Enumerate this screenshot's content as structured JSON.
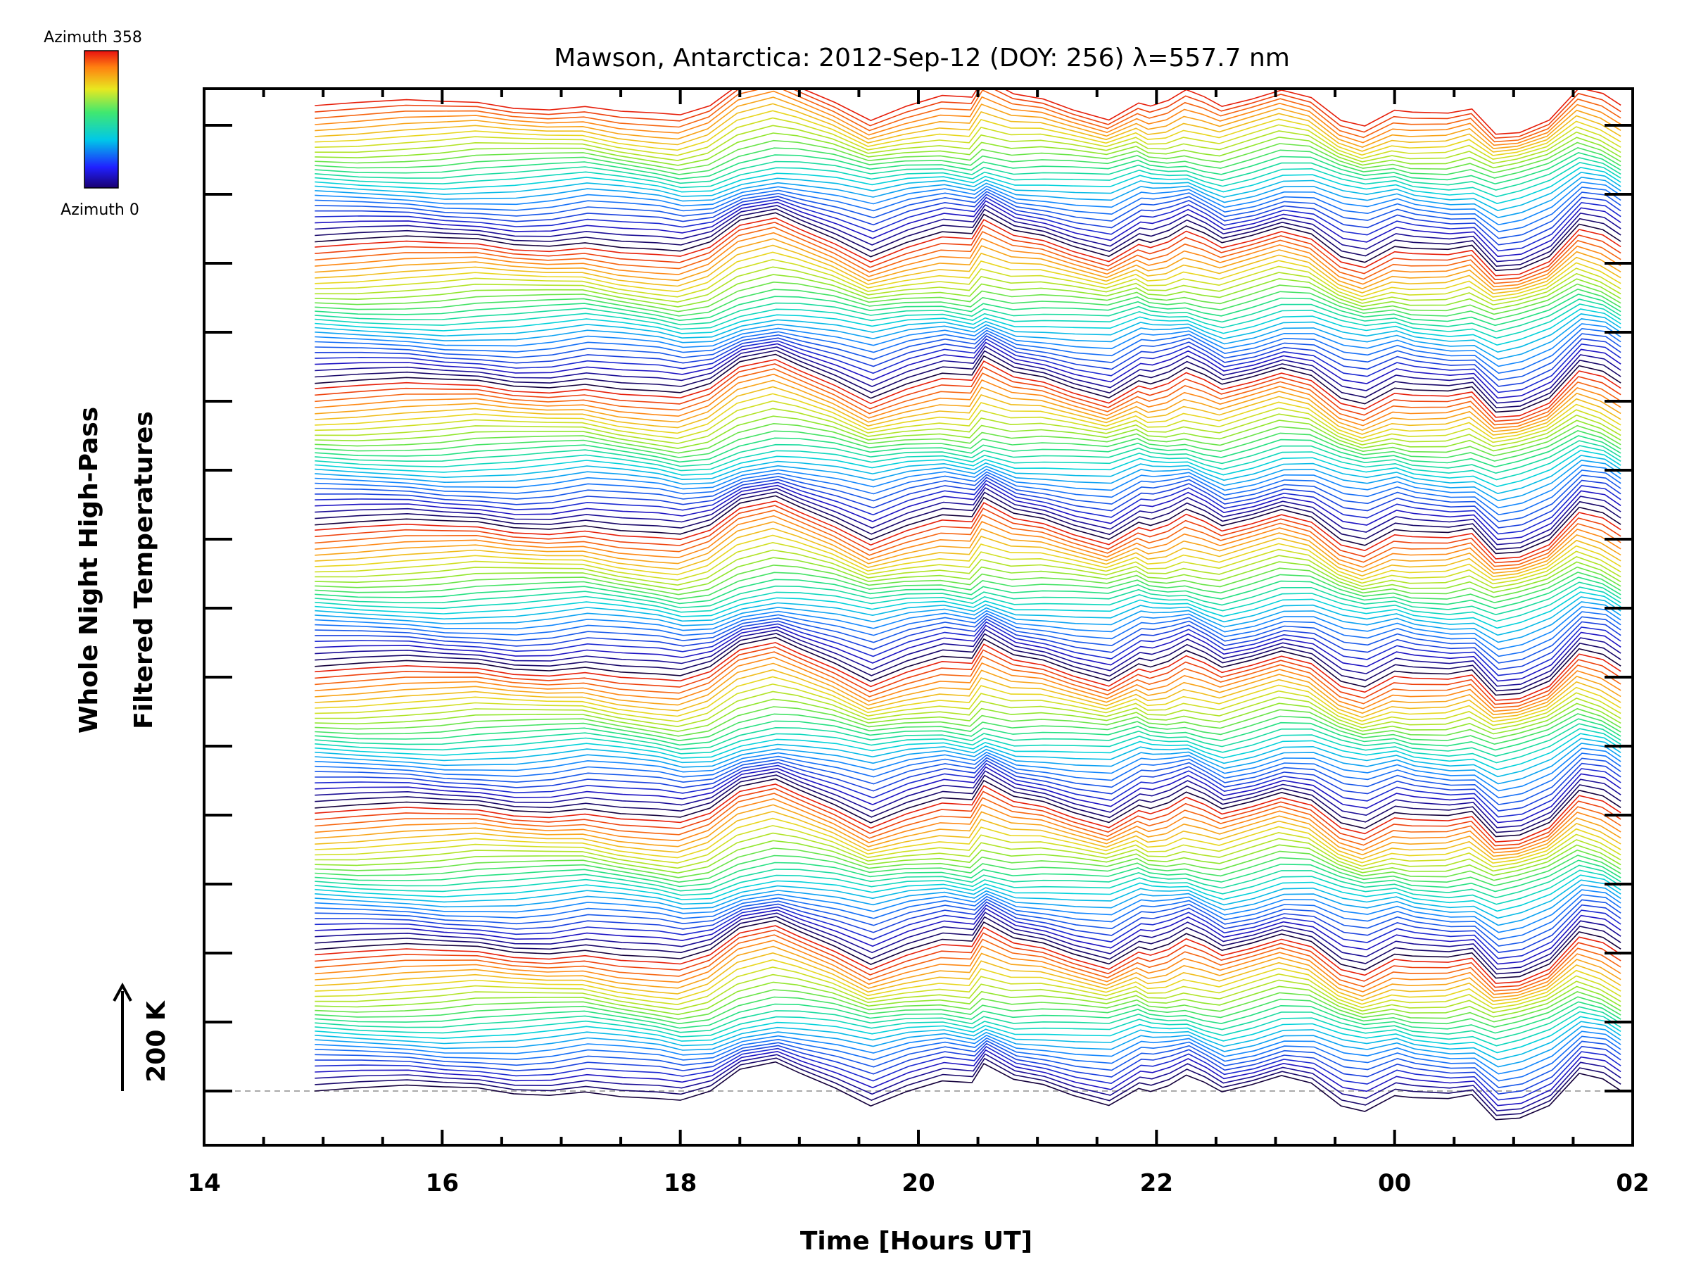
{
  "chart_data": {
    "type": "line",
    "title": "Mawson, Antarctica: 2012-Sep-12 (DOY: 256) λ=557.7 nm",
    "xlabel": "Time [Hours UT]",
    "ylabel_line1": "Whole Night High-Pass",
    "ylabel_line2": "Filtered Temperatures",
    "scale_label": "200 K",
    "x_tick_labels": [
      "14",
      "16",
      "18",
      "20",
      "22",
      "00",
      "02"
    ],
    "x_range_hours": [
      14,
      26
    ],
    "data_x_range_hours": [
      14.93,
      25.9
    ],
    "grid": false,
    "colorbar": {
      "max_label": "Azimuth 358",
      "min_label": "Azimuth 0",
      "range_deg": [
        0,
        358
      ]
    },
    "stack_groups": 7,
    "traces_per_group": 27,
    "x": [
      14.93,
      15.3,
      15.7,
      16.0,
      16.3,
      16.6,
      16.9,
      17.2,
      17.5,
      17.8,
      18.0,
      18.25,
      18.5,
      18.8,
      19.0,
      19.3,
      19.6,
      19.9,
      20.2,
      20.45,
      20.55,
      20.8,
      21.05,
      21.3,
      21.6,
      21.85,
      21.95,
      22.1,
      22.25,
      22.4,
      22.55,
      22.8,
      23.05,
      23.3,
      23.55,
      23.75,
      24.0,
      24.15,
      24.45,
      24.65,
      24.85,
      25.05,
      25.3,
      25.55,
      25.75,
      25.9
    ],
    "bottom_trace_offsets_K": [
      0,
      0,
      2,
      0,
      3,
      -2,
      0,
      8,
      -5,
      -15,
      -25,
      -10,
      35,
      55,
      40,
      15,
      -20,
      5,
      20,
      10,
      45,
      15,
      10,
      -5,
      -20,
      15,
      5,
      10,
      25,
      8,
      -10,
      10,
      35,
      25,
      -20,
      -35,
      -10,
      -20,
      -25,
      -15,
      -60,
      -50,
      -20,
      45,
      30,
      0
    ],
    "colors": {
      "low_azimuth": "#1a0a9a",
      "mid_azimuth": "#22d4c8",
      "high_azimuth": "#e8200a",
      "reference_line": "#aaaaaa"
    }
  }
}
